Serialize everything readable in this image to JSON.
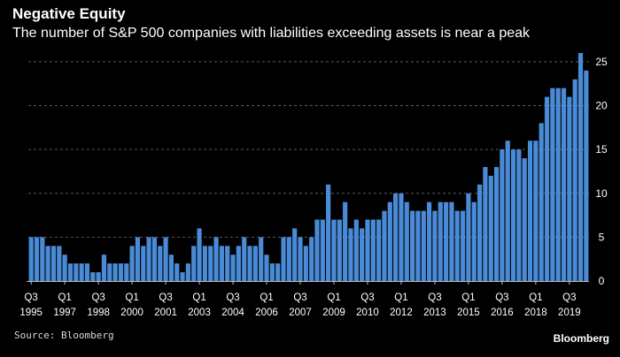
{
  "title": "Negative Equity",
  "subtitle": "The number of S&P 500 companies with liabilities exceeding assets is near a peak",
  "source": "Source: Bloomberg",
  "brand": "Bloomberg",
  "colors": {
    "background": "#000000",
    "bar": "#4a8bd8",
    "grid": "#5a5a5a",
    "text": "#ffffff"
  },
  "chart_data": {
    "type": "bar",
    "title": "Negative Equity",
    "subtitle": "The number of S&P 500 companies with liabilities exceeding assets is near a peak",
    "xlabel": "",
    "ylabel": "",
    "ylim": [
      0,
      26
    ],
    "y_ticks": [
      0,
      5,
      10,
      15,
      20,
      25
    ],
    "grid": "horizontal dashed",
    "x_tick_labels": [
      {
        "quarter": "Q3",
        "year": "1995",
        "index": 0
      },
      {
        "quarter": "Q1",
        "year": "1997",
        "index": 6
      },
      {
        "quarter": "Q3",
        "year": "1998",
        "index": 12
      },
      {
        "quarter": "Q1",
        "year": "2000",
        "index": 18
      },
      {
        "quarter": "Q3",
        "year": "2001",
        "index": 24
      },
      {
        "quarter": "Q1",
        "year": "2003",
        "index": 30
      },
      {
        "quarter": "Q3",
        "year": "2004",
        "index": 36
      },
      {
        "quarter": "Q1",
        "year": "2006",
        "index": 42
      },
      {
        "quarter": "Q3",
        "year": "2007",
        "index": 48
      },
      {
        "quarter": "Q1",
        "year": "2009",
        "index": 54
      },
      {
        "quarter": "Q3",
        "year": "2010",
        "index": 60
      },
      {
        "quarter": "Q1",
        "year": "2012",
        "index": 66
      },
      {
        "quarter": "Q3",
        "year": "2013",
        "index": 72
      },
      {
        "quarter": "Q1",
        "year": "2015",
        "index": 78
      },
      {
        "quarter": "Q3",
        "year": "2016",
        "index": 84
      },
      {
        "quarter": "Q1",
        "year": "2018",
        "index": 90
      },
      {
        "quarter": "Q3",
        "year": "2019",
        "index": 96
      }
    ],
    "x_start": "Q3 1995",
    "x_frequency": "quarterly",
    "values": [
      5,
      5,
      5,
      4,
      4,
      4,
      3,
      2,
      2,
      2,
      2,
      1,
      1,
      3,
      2,
      2,
      2,
      2,
      4,
      5,
      4,
      5,
      5,
      4,
      5,
      3,
      2,
      1,
      2,
      4,
      6,
      4,
      4,
      5,
      4,
      4,
      3,
      4,
      5,
      4,
      4,
      5,
      3,
      2,
      2,
      5,
      5,
      6,
      5,
      4,
      5,
      7,
      7,
      11,
      7,
      7,
      9,
      6,
      7,
      6,
      7,
      7,
      7,
      8,
      9,
      10,
      10,
      9,
      8,
      8,
      8,
      9,
      8,
      9,
      9,
      9,
      8,
      8,
      10,
      9,
      11,
      13,
      12,
      13,
      15,
      16,
      15,
      15,
      14,
      16,
      16,
      18,
      21,
      22,
      22,
      22,
      21,
      23,
      26,
      24
    ]
  }
}
